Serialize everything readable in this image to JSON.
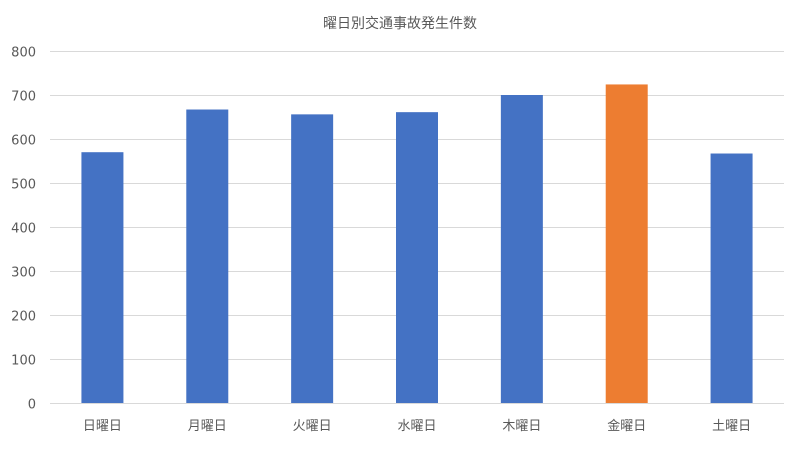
{
  "chart_data": {
    "type": "bar",
    "title": "曜日別交通事故発生件数",
    "xlabel": "",
    "ylabel": "",
    "categories": [
      "日曜日",
      "月曜日",
      "火曜日",
      "水曜日",
      "木曜日",
      "金曜日",
      "土曜日"
    ],
    "values": [
      570,
      667,
      656,
      661,
      700,
      724,
      567
    ],
    "ylim": [
      0,
      800
    ],
    "yticks": [
      0,
      100,
      200,
      300,
      400,
      500,
      600,
      700,
      800
    ],
    "grid": true,
    "legend": "none",
    "colors": {
      "default": "#4472C4",
      "highlight": "#ED7D31"
    },
    "highlight_index": 5
  }
}
